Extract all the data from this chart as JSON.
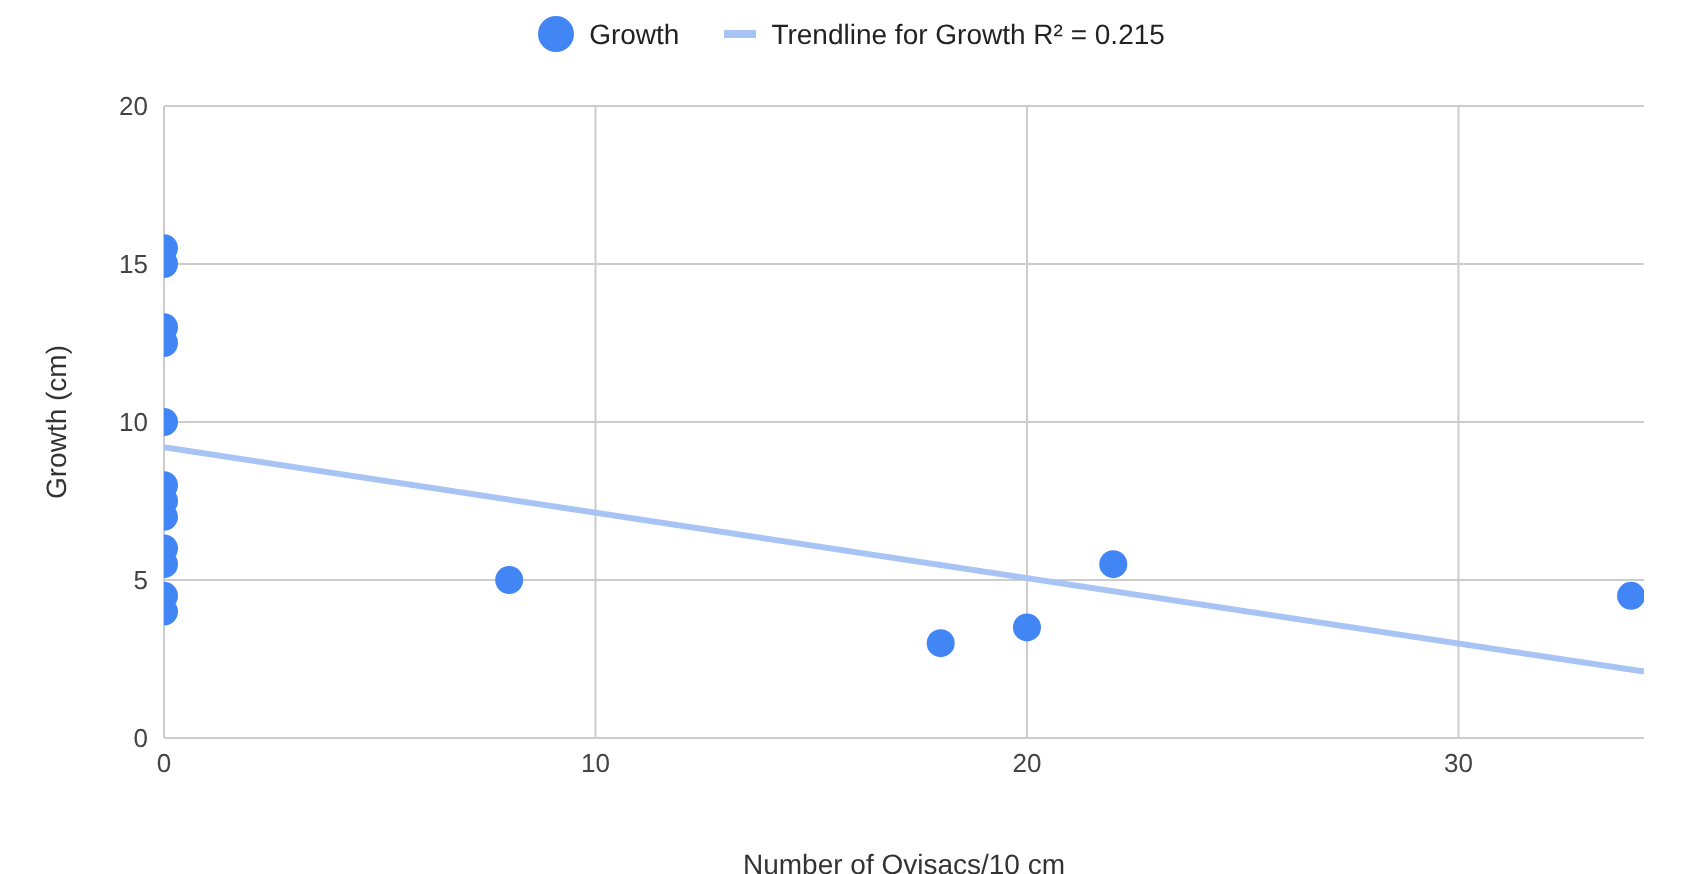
{
  "chart_data": {
    "type": "scatter",
    "xlabel": "Number of Ovisacs/10 cm",
    "ylabel": "Growth (cm)",
    "xlim": [
      0,
      34.3
    ],
    "xticks": [
      0,
      10,
      20,
      30
    ],
    "ylim": [
      0,
      20
    ],
    "yticks": [
      0,
      5,
      10,
      15,
      20
    ],
    "grid": true,
    "legend": "top",
    "marker": "circle",
    "series": [
      {
        "name": "Growth",
        "color": "#4285f4",
        "x": [
          0,
          0,
          0,
          0,
          0,
          0,
          0,
          0,
          0,
          0,
          0,
          0,
          8,
          18,
          20,
          22,
          34
        ],
        "values": [
          15.5,
          15,
          13,
          12.5,
          10,
          8,
          7.5,
          7,
          6,
          5.5,
          4.5,
          4,
          5,
          3,
          3.5,
          5.5,
          4.5
        ]
      },
      {
        "name": "Trendline for Growth R² = 0.215",
        "type": "line",
        "color": "#a8c4f5",
        "marker": "none",
        "x": [
          0,
          34.3
        ],
        "values": [
          9.2,
          2.1
        ]
      }
    ]
  }
}
